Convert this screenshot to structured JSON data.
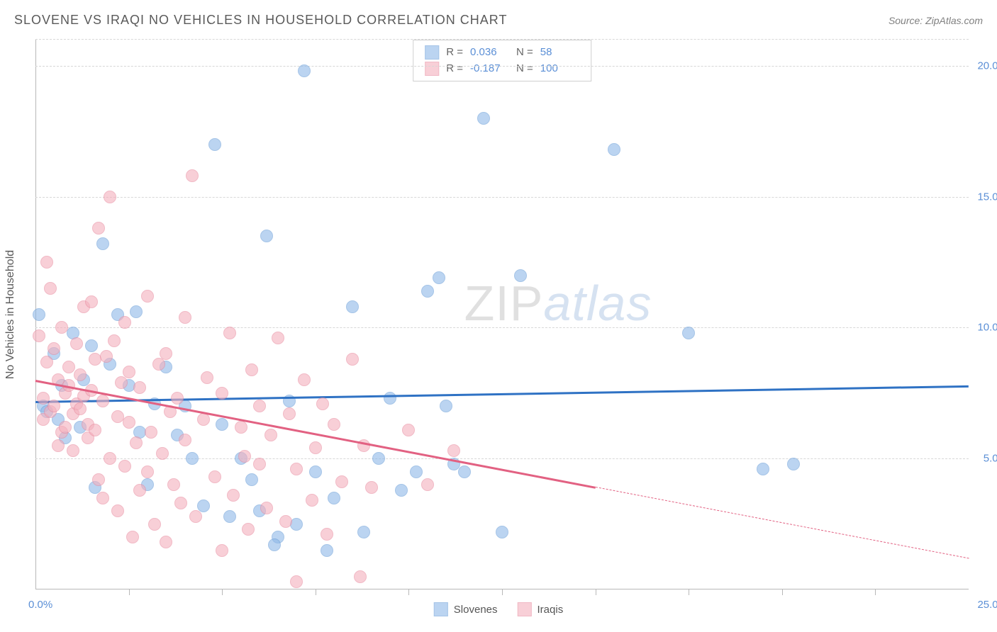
{
  "title": "SLOVENE VS IRAQI NO VEHICLES IN HOUSEHOLD CORRELATION CHART",
  "source_label": "Source: ZipAtlas.com",
  "y_axis_label": "No Vehicles in Household",
  "watermark": {
    "part1": "ZIP",
    "part2": "atlas"
  },
  "chart": {
    "type": "scatter",
    "background_color": "#ffffff",
    "grid_color": "#d7d7d7",
    "axis_color": "#b8b8b8",
    "tick_label_color": "#5b8fd6",
    "axis_label_color": "#5a5a5a",
    "xlim": [
      0,
      25
    ],
    "ylim": [
      0,
      21
    ],
    "x_origin_label": "0.0%",
    "x_max_label": "25.0%",
    "x_ticks": [
      2.5,
      5.0,
      7.5,
      10.0,
      12.5,
      15.0,
      17.5,
      20.0,
      22.5
    ],
    "y_gridlines": [
      5.0,
      10.0,
      15.0,
      20.0
    ],
    "y_tick_labels": [
      "5.0%",
      "10.0%",
      "15.0%",
      "20.0%"
    ],
    "marker_radius": 9,
    "marker_stroke_width": 1.5,
    "marker_fill_opacity": 0.35,
    "series": [
      {
        "name": "Slovenes",
        "color": "#8fb8e8",
        "stroke": "#6a9ed8",
        "trend_color": "#2f72c4",
        "R": "0.036",
        "N": "58",
        "trend": {
          "x1": 0,
          "y1": 7.2,
          "x2": 25,
          "y2": 7.8,
          "solid_until_x": 25
        },
        "points": [
          [
            0.1,
            10.5
          ],
          [
            0.2,
            7.0
          ],
          [
            0.3,
            6.8
          ],
          [
            0.5,
            9.0
          ],
          [
            0.6,
            6.5
          ],
          [
            0.7,
            7.8
          ],
          [
            0.8,
            5.8
          ],
          [
            1.0,
            9.8
          ],
          [
            1.2,
            6.2
          ],
          [
            1.3,
            8.0
          ],
          [
            1.5,
            9.3
          ],
          [
            1.6,
            3.9
          ],
          [
            1.8,
            13.2
          ],
          [
            2.0,
            8.6
          ],
          [
            2.2,
            10.5
          ],
          [
            2.5,
            7.8
          ],
          [
            2.7,
            10.6
          ],
          [
            2.8,
            6.0
          ],
          [
            3.0,
            4.0
          ],
          [
            3.2,
            7.1
          ],
          [
            3.5,
            8.5
          ],
          [
            3.8,
            5.9
          ],
          [
            4.0,
            7.0
          ],
          [
            4.2,
            5.0
          ],
          [
            4.5,
            3.2
          ],
          [
            4.8,
            17.0
          ],
          [
            5.0,
            6.3
          ],
          [
            5.2,
            2.8
          ],
          [
            5.5,
            5.0
          ],
          [
            5.8,
            4.2
          ],
          [
            6.0,
            3.0
          ],
          [
            6.2,
            13.5
          ],
          [
            6.5,
            2.0
          ],
          [
            6.8,
            7.2
          ],
          [
            7.0,
            2.5
          ],
          [
            7.2,
            19.8
          ],
          [
            7.5,
            4.5
          ],
          [
            7.8,
            1.5
          ],
          [
            8.0,
            3.5
          ],
          [
            8.5,
            10.8
          ],
          [
            8.8,
            2.2
          ],
          [
            9.2,
            5.0
          ],
          [
            9.5,
            7.3
          ],
          [
            9.8,
            3.8
          ],
          [
            10.2,
            4.5
          ],
          [
            10.5,
            11.4
          ],
          [
            11.0,
            7.0
          ],
          [
            11.2,
            4.8
          ],
          [
            11.5,
            4.5
          ],
          [
            12.0,
            18.0
          ],
          [
            12.5,
            2.2
          ],
          [
            13.0,
            12.0
          ],
          [
            15.5,
            16.8
          ],
          [
            17.5,
            9.8
          ],
          [
            19.5,
            4.6
          ],
          [
            20.3,
            4.8
          ],
          [
            10.8,
            11.9
          ],
          [
            6.4,
            1.7
          ]
        ]
      },
      {
        "name": "Iraqis",
        "color": "#f4b0bd",
        "stroke": "#e88ca0",
        "trend_color": "#e26182",
        "R": "-0.187",
        "N": "100",
        "trend": {
          "x1": 0,
          "y1": 8.0,
          "x2": 25,
          "y2": 1.2,
          "solid_until_x": 15
        },
        "points": [
          [
            0.1,
            9.7
          ],
          [
            0.2,
            7.3
          ],
          [
            0.2,
            6.5
          ],
          [
            0.3,
            12.5
          ],
          [
            0.3,
            8.7
          ],
          [
            0.4,
            11.5
          ],
          [
            0.4,
            6.8
          ],
          [
            0.5,
            7.0
          ],
          [
            0.5,
            9.2
          ],
          [
            0.6,
            8.0
          ],
          [
            0.6,
            5.5
          ],
          [
            0.7,
            6.0
          ],
          [
            0.7,
            10.0
          ],
          [
            0.8,
            7.5
          ],
          [
            0.8,
            6.2
          ],
          [
            0.9,
            7.8
          ],
          [
            0.9,
            8.5
          ],
          [
            1.0,
            6.7
          ],
          [
            1.0,
            5.3
          ],
          [
            1.1,
            7.1
          ],
          [
            1.1,
            9.4
          ],
          [
            1.2,
            6.9
          ],
          [
            1.2,
            8.2
          ],
          [
            1.3,
            10.8
          ],
          [
            1.3,
            7.4
          ],
          [
            1.4,
            6.3
          ],
          [
            1.4,
            5.8
          ],
          [
            1.5,
            11.0
          ],
          [
            1.5,
            7.6
          ],
          [
            1.6,
            8.8
          ],
          [
            1.6,
            6.1
          ],
          [
            1.7,
            13.8
          ],
          [
            1.7,
            4.2
          ],
          [
            1.8,
            3.5
          ],
          [
            1.8,
            7.2
          ],
          [
            1.9,
            8.9
          ],
          [
            2.0,
            15.0
          ],
          [
            2.0,
            5.0
          ],
          [
            2.1,
            9.5
          ],
          [
            2.2,
            6.6
          ],
          [
            2.2,
            3.0
          ],
          [
            2.3,
            7.9
          ],
          [
            2.4,
            10.2
          ],
          [
            2.4,
            4.7
          ],
          [
            2.5,
            6.4
          ],
          [
            2.5,
            8.3
          ],
          [
            2.6,
            2.0
          ],
          [
            2.7,
            5.6
          ],
          [
            2.8,
            7.7
          ],
          [
            2.8,
            3.8
          ],
          [
            3.0,
            11.2
          ],
          [
            3.0,
            4.5
          ],
          [
            3.1,
            6.0
          ],
          [
            3.2,
            2.5
          ],
          [
            3.3,
            8.6
          ],
          [
            3.4,
            5.2
          ],
          [
            3.5,
            9.0
          ],
          [
            3.5,
            1.8
          ],
          [
            3.6,
            6.8
          ],
          [
            3.7,
            4.0
          ],
          [
            3.8,
            7.3
          ],
          [
            3.9,
            3.3
          ],
          [
            4.0,
            10.4
          ],
          [
            4.0,
            5.7
          ],
          [
            4.2,
            15.8
          ],
          [
            4.3,
            2.8
          ],
          [
            4.5,
            6.5
          ],
          [
            4.6,
            8.1
          ],
          [
            4.8,
            4.3
          ],
          [
            5.0,
            7.5
          ],
          [
            5.0,
            1.5
          ],
          [
            5.2,
            9.8
          ],
          [
            5.3,
            3.6
          ],
          [
            5.5,
            6.2
          ],
          [
            5.6,
            5.1
          ],
          [
            5.7,
            2.3
          ],
          [
            5.8,
            8.4
          ],
          [
            6.0,
            4.8
          ],
          [
            6.0,
            7.0
          ],
          [
            6.2,
            3.1
          ],
          [
            6.3,
            5.9
          ],
          [
            6.5,
            9.6
          ],
          [
            6.7,
            2.6
          ],
          [
            6.8,
            6.7
          ],
          [
            7.0,
            4.6
          ],
          [
            7.2,
            8.0
          ],
          [
            7.4,
            3.4
          ],
          [
            7.5,
            5.4
          ],
          [
            7.7,
            7.1
          ],
          [
            7.8,
            2.1
          ],
          [
            8.0,
            6.3
          ],
          [
            8.2,
            4.1
          ],
          [
            8.5,
            8.8
          ],
          [
            8.7,
            0.5
          ],
          [
            8.8,
            5.5
          ],
          [
            9.0,
            3.9
          ],
          [
            10.0,
            6.1
          ],
          [
            10.5,
            4.0
          ],
          [
            11.2,
            5.3
          ],
          [
            7.0,
            0.3
          ]
        ]
      }
    ]
  },
  "legend_labels": {
    "slovenes": "Slovenes",
    "iraqis": "Iraqis"
  },
  "stats_labels": {
    "R": "R =",
    "N": "N ="
  }
}
